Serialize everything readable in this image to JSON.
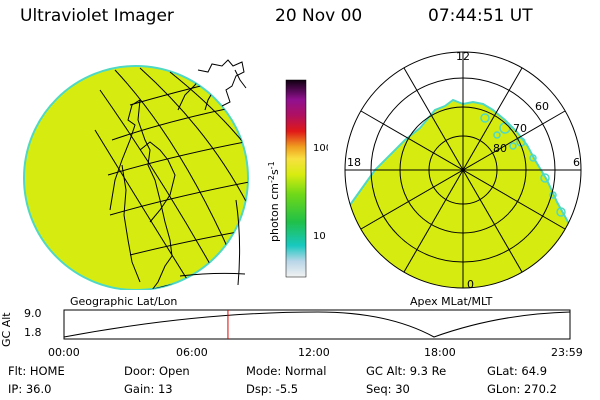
{
  "header": {
    "instrument": "Ultraviolet Imager",
    "date": "20 Nov 00",
    "time": "07:44:51 UT"
  },
  "colors": {
    "fill": "#d6ec10",
    "edge": "#4fd8c4",
    "land": "#000000",
    "marker": "#e00000"
  },
  "geo_panel": {
    "label": "Geographic Lat/Lon"
  },
  "polar_panel": {
    "label": "Apex MLat/MLT",
    "mlt_labels": {
      "top": "12",
      "left": "18",
      "right": "6",
      "bottom": "0"
    },
    "lat_labels": [
      "60",
      "70",
      "80"
    ]
  },
  "colorbar": {
    "ticks": [
      "100",
      "10"
    ],
    "unit_text": "photon cm",
    "unit_sup1": "-2",
    "unit_mid": "s",
    "unit_sup2": "-1"
  },
  "orbit": {
    "axis_label": "GC Alt",
    "y_ticks": [
      "9.0",
      "1.8"
    ],
    "x_ticks": [
      "00:00",
      "06:00",
      "12:00",
      "18:00",
      "23:59"
    ],
    "current_time_fraction": 0.324
  },
  "info": {
    "flt": "Flt: HOME",
    "door": "Door: Open",
    "mode": "Mode: Normal",
    "gcalt": "GC Alt: 9.3 Re",
    "glat": "GLat:  64.9",
    "ip": "IP: 36.0",
    "gain": "Gain: 13",
    "dsp": "Dsp:    -5.5",
    "seq": "Seq: 30",
    "glon": "GLon: 270.2"
  }
}
